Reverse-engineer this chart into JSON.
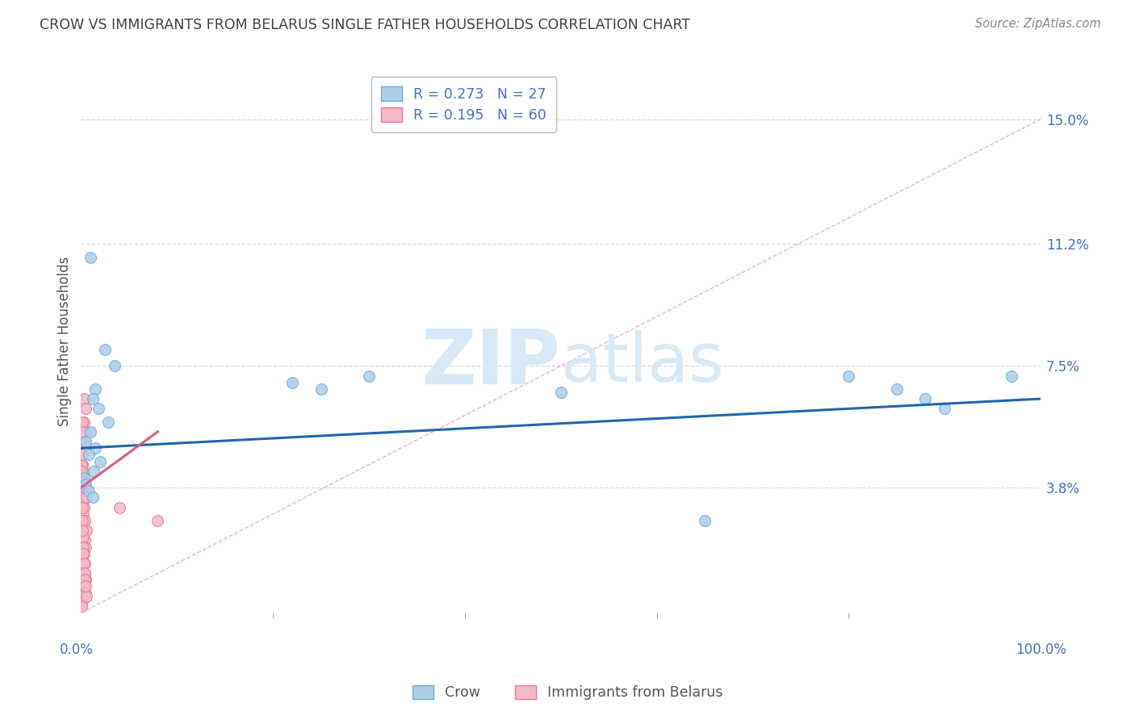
{
  "title": "CROW VS IMMIGRANTS FROM BELARUS SINGLE FATHER HOUSEHOLDS CORRELATION CHART",
  "source": "Source: ZipAtlas.com",
  "ylabel": "Single Father Households",
  "legend_box_items": [
    {
      "label": "R = 0.273   N = 27",
      "color": "#a8c8f0"
    },
    {
      "label": "R = 0.195   N = 60",
      "color": "#f0a8b8"
    }
  ],
  "bottom_legend": [
    {
      "label": "Crow",
      "color": "#a8c8f0"
    },
    {
      "label": "Immigrants from Belarus",
      "color": "#f0a8b8"
    }
  ],
  "ytick_values": [
    15.0,
    11.2,
    7.5,
    3.8
  ],
  "xlim": [
    0,
    100
  ],
  "ylim": [
    0,
    16.5
  ],
  "crow_points": [
    [
      1.0,
      10.8
    ],
    [
      2.5,
      8.0
    ],
    [
      1.5,
      6.8
    ],
    [
      3.5,
      7.5
    ],
    [
      1.2,
      6.5
    ],
    [
      1.8,
      6.2
    ],
    [
      2.8,
      5.8
    ],
    [
      1.0,
      5.5
    ],
    [
      0.5,
      5.2
    ],
    [
      1.5,
      5.0
    ],
    [
      0.8,
      4.8
    ],
    [
      2.0,
      4.6
    ],
    [
      1.3,
      4.3
    ],
    [
      0.3,
      4.1
    ],
    [
      0.5,
      3.9
    ],
    [
      0.8,
      3.7
    ],
    [
      1.2,
      3.5
    ],
    [
      22.0,
      7.0
    ],
    [
      25.0,
      6.8
    ],
    [
      30.0,
      7.2
    ],
    [
      50.0,
      6.7
    ],
    [
      65.0,
      2.8
    ],
    [
      80.0,
      7.2
    ],
    [
      85.0,
      6.8
    ],
    [
      88.0,
      6.5
    ],
    [
      90.0,
      6.2
    ],
    [
      97.0,
      7.2
    ]
  ],
  "belarus_points": [
    [
      0.3,
      6.5
    ],
    [
      0.5,
      6.2
    ],
    [
      0.3,
      5.8
    ],
    [
      0.5,
      5.5
    ],
    [
      0.2,
      5.2
    ],
    [
      0.1,
      4.8
    ],
    [
      0.15,
      4.5
    ],
    [
      0.2,
      4.3
    ],
    [
      0.12,
      4.0
    ],
    [
      0.08,
      3.8
    ],
    [
      0.3,
      3.5
    ],
    [
      0.5,
      3.5
    ],
    [
      0.3,
      3.2
    ],
    [
      0.2,
      3.0
    ],
    [
      0.15,
      2.8
    ],
    [
      0.1,
      2.5
    ],
    [
      0.05,
      2.2
    ],
    [
      0.4,
      2.8
    ],
    [
      0.6,
      2.5
    ],
    [
      0.4,
      2.2
    ],
    [
      0.5,
      2.0
    ],
    [
      0.2,
      1.8
    ],
    [
      0.1,
      1.5
    ],
    [
      0.05,
      1.2
    ],
    [
      0.08,
      1.0
    ],
    [
      0.12,
      0.8
    ],
    [
      0.15,
      0.5
    ],
    [
      0.05,
      0.3
    ],
    [
      0.08,
      0.2
    ],
    [
      0.15,
      3.8
    ],
    [
      0.2,
      3.3
    ],
    [
      0.08,
      4.5
    ],
    [
      0.05,
      4.2
    ],
    [
      0.1,
      3.5
    ],
    [
      0.1,
      2.8
    ],
    [
      0.2,
      2.3
    ],
    [
      0.25,
      2.0
    ],
    [
      0.3,
      1.8
    ],
    [
      0.35,
      1.5
    ],
    [
      0.4,
      1.2
    ],
    [
      0.5,
      1.0
    ],
    [
      0.5,
      3.8
    ],
    [
      0.6,
      3.5
    ],
    [
      0.35,
      0.8
    ],
    [
      0.45,
      0.6
    ],
    [
      0.55,
      0.5
    ],
    [
      0.15,
      5.8
    ],
    [
      0.25,
      5.5
    ],
    [
      4.0,
      3.2
    ],
    [
      8.0,
      2.8
    ],
    [
      0.08,
      4.8
    ],
    [
      0.05,
      4.3
    ],
    [
      0.1,
      3.2
    ],
    [
      0.1,
      2.5
    ],
    [
      0.2,
      2.0
    ],
    [
      0.25,
      1.8
    ],
    [
      0.3,
      1.5
    ],
    [
      0.35,
      1.2
    ],
    [
      0.4,
      1.0
    ],
    [
      0.5,
      0.8
    ]
  ],
  "crow_regression": {
    "x_start": 0,
    "y_start": 5.0,
    "x_end": 100,
    "y_end": 6.5
  },
  "belarus_regression": {
    "x_start": 0,
    "y_start": 3.8,
    "x_end": 8,
    "y_end": 5.5
  },
  "diagonal_dashed": {
    "x_start": 0,
    "y_start": 0,
    "x_end": 100,
    "y_end": 15.0
  },
  "crow_color": "#aecde8",
  "crow_edge_color": "#6aaed6",
  "belarus_color": "#f7b8c8",
  "belarus_edge_color": "#e87898",
  "crow_line_color": "#2166ac",
  "belarus_line_color": "#d6607a",
  "diagonal_color": "#e8b0c0",
  "background_color": "#ffffff",
  "grid_color": "#d0d0d0",
  "watermark_zip": "ZIP",
  "watermark_atlas": "atlas",
  "watermark_color": "#d8e8f5",
  "title_color": "#404040",
  "tick_label_color": "#4472c4",
  "source_color": "#888888",
  "marker_size": 100
}
